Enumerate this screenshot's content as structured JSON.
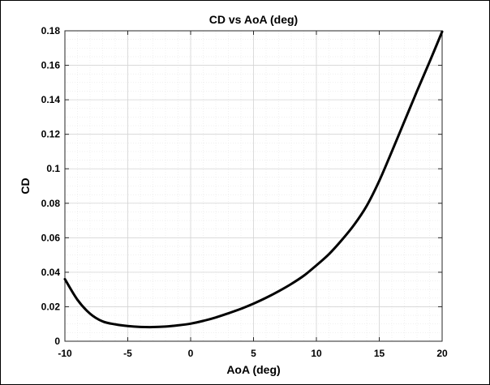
{
  "chart_data": {
    "type": "line",
    "title": "CD vs AoA (deg)",
    "xlabel": "AoA (deg)",
    "ylabel": "CD",
    "xlim": [
      -10,
      20
    ],
    "ylim": [
      0,
      0.18
    ],
    "x_ticks": [
      -10,
      -5,
      0,
      5,
      10,
      15,
      20
    ],
    "x_tick_labels": [
      "-10",
      "-5",
      "0",
      "5",
      "10",
      "15",
      "20"
    ],
    "y_ticks": [
      0,
      0.02,
      0.04,
      0.06,
      0.08,
      0.1,
      0.12,
      0.14,
      0.16,
      0.18
    ],
    "y_tick_labels": [
      "0",
      "0.02",
      "0.04",
      "0.06",
      "0.08",
      "0.1",
      "0.12",
      "0.14",
      "0.16",
      "0.18"
    ],
    "grid": true,
    "minor_grid": true,
    "series": [
      {
        "color": "#000000",
        "x": [
          -10,
          -9,
          -8,
          -7,
          -6,
          -5,
          -4,
          -3,
          -2,
          -1,
          0,
          1,
          2,
          3,
          4,
          5,
          6,
          7,
          8,
          9,
          10,
          11,
          12,
          13,
          14,
          15,
          16,
          17,
          18,
          19,
          20
        ],
        "y": [
          0.036,
          0.024,
          0.016,
          0.0115,
          0.0098,
          0.0088,
          0.0083,
          0.0082,
          0.0085,
          0.0092,
          0.0102,
          0.0118,
          0.0138,
          0.0162,
          0.0188,
          0.0218,
          0.0252,
          0.029,
          0.0332,
          0.038,
          0.044,
          0.0505,
          0.0585,
          0.0675,
          0.0785,
          0.093,
          0.11,
          0.1275,
          0.145,
          0.162,
          0.1795
        ]
      }
    ]
  }
}
